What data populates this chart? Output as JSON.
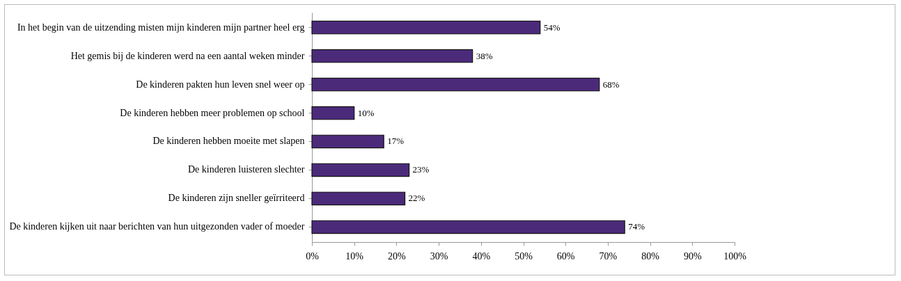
{
  "chart_data": {
    "type": "bar",
    "orientation": "horizontal",
    "categories": [
      "In het begin van de uitzending misten mijn kinderen mijn partner heel erg",
      "Het gemis bij de kinderen werd na een aantal weken minder",
      "De kinderen pakten hun leven snel weer op",
      "De kinderen hebben meer problemen op school",
      "De kinderen hebben moeite met slapen",
      "De kinderen luisteren slechter",
      "De kinderen zijn sneller geïrriteerd",
      "De kinderen kijken uit naar berichten van hun uitgezonden vader of moeder"
    ],
    "values": [
      54,
      38,
      68,
      10,
      17,
      23,
      22,
      74
    ],
    "value_labels": [
      "54%",
      "38%",
      "68%",
      "10%",
      "17%",
      "23%",
      "22%",
      "74%"
    ],
    "color": "#4b2a7a",
    "xlim": [
      0,
      100
    ],
    "xticks": [
      {
        "value": 0,
        "label": "0%"
      },
      {
        "value": 10,
        "label": "10%"
      },
      {
        "value": 20,
        "label": "20%"
      },
      {
        "value": 30,
        "label": "30%"
      },
      {
        "value": 40,
        "label": "40%"
      },
      {
        "value": 50,
        "label": "50%"
      },
      {
        "value": 60,
        "label": "60%"
      },
      {
        "value": 70,
        "label": "70%"
      },
      {
        "value": 80,
        "label": "80%"
      },
      {
        "value": 90,
        "label": "90%"
      },
      {
        "value": 100,
        "label": "100%"
      }
    ],
    "grid": false
  }
}
